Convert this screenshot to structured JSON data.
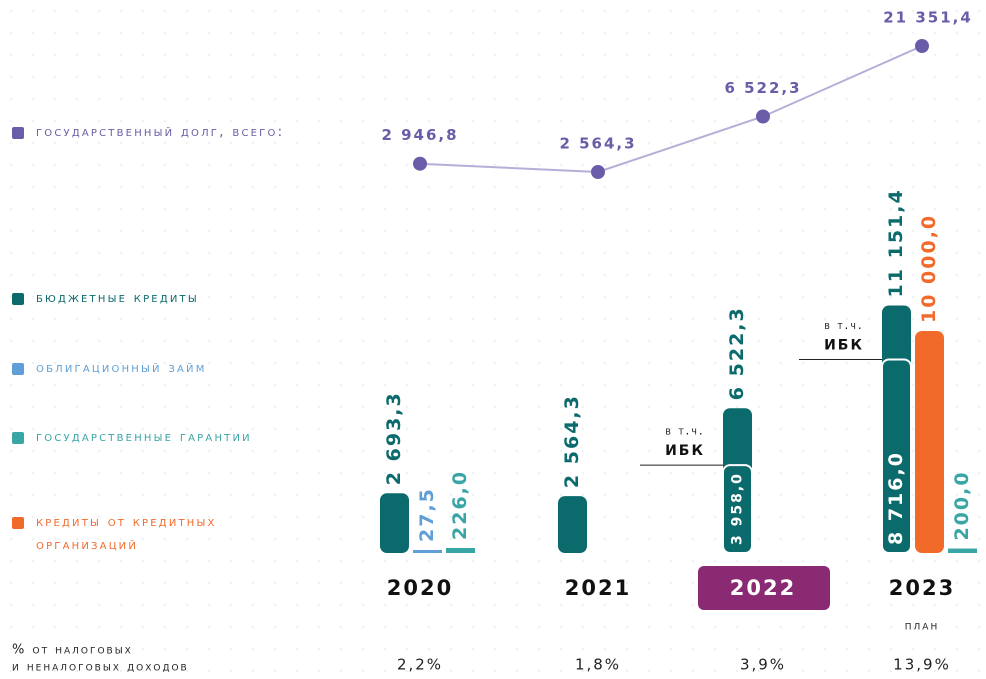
{
  "chart_data": [
    {
      "type": "line",
      "categories": [
        "2020",
        "2021",
        "2022",
        "2023"
      ],
      "log_scale": true,
      "series": [
        {
          "name": "Государственный долг, всего:",
          "color": "#6a5ca8",
          "line_color": "#b6aed6",
          "values": [
            2946.8,
            2564.3,
            6522.3,
            21351.4
          ],
          "value_labels": [
            "2 946,8",
            "2 564,3",
            "6 522,3",
            "21 351,4"
          ]
        }
      ]
    },
    {
      "type": "bar",
      "categories": [
        "2020",
        "2021",
        "2022",
        "2023"
      ],
      "notes": [
        null,
        null,
        null,
        "план"
      ],
      "highlight_category": "2022",
      "highlight_color": "#8a2a72",
      "series": [
        {
          "name": "Бюджетные кредиты",
          "color": "#0b6a6c",
          "values": [
            2693.3,
            2564.3,
            6522.3,
            11151.4
          ],
          "value_labels": [
            "2 693,3",
            "2 564,3",
            "6 522,3",
            "11 151,4"
          ],
          "including": {
            "label": [
              "в т.ч.",
              "ИБК"
            ],
            "values": [
              null,
              null,
              3958.0,
              8716.0
            ],
            "value_labels": [
              null,
              null,
              "3 958,0",
              "8 716,0"
            ]
          }
        },
        {
          "name": "Облигационный займ",
          "color": "#5f9ed6",
          "values": [
            27.5,
            null,
            null,
            null
          ],
          "value_labels": [
            "27,5",
            null,
            null,
            null
          ]
        },
        {
          "name": "Государственные гарантии",
          "color": "#3aa5a5",
          "values": [
            226.0,
            null,
            null,
            200.0
          ],
          "value_labels": [
            "226,0",
            null,
            null,
            "200,0"
          ]
        },
        {
          "name": "Кредиты от кредитных организаций",
          "color": "#f26a2a",
          "values": [
            null,
            null,
            null,
            10000.0
          ],
          "value_labels": [
            null,
            null,
            null,
            "10 000,0"
          ]
        }
      ],
      "percent_label": [
        "% от налоговых",
        "и неналоговых доходов"
      ],
      "percent_values": [
        2.2,
        1.8,
        3.9,
        13.9
      ],
      "percent_value_labels": [
        "2,2%",
        "1,8%",
        "3,9%",
        "13,9%"
      ]
    }
  ]
}
